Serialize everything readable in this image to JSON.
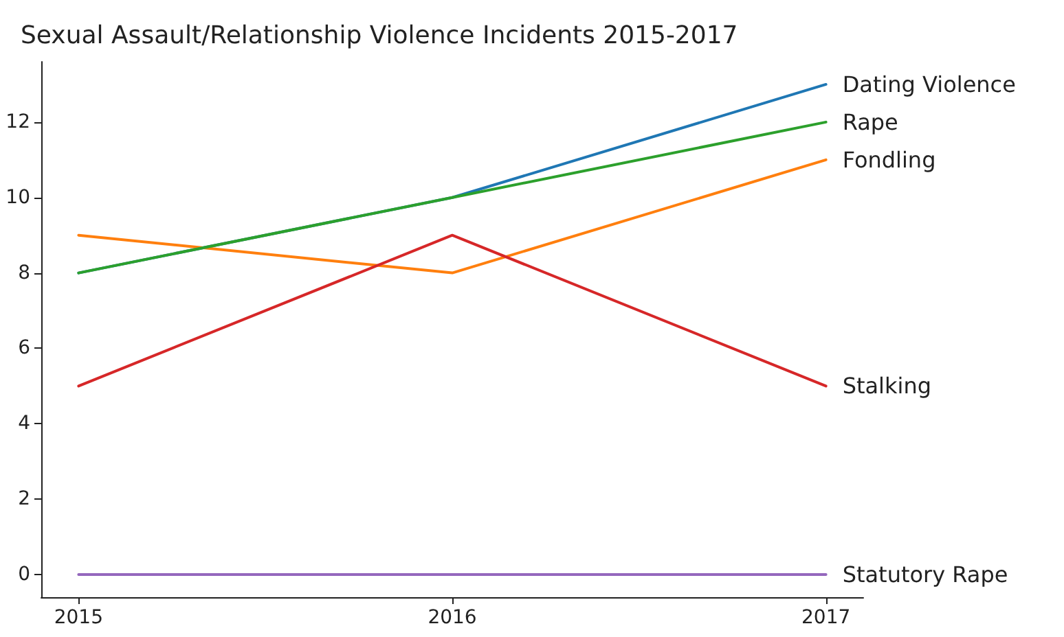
{
  "chart_data": {
    "type": "line",
    "title": "Sexual Assault/Relationship Violence Incidents 2015-2017",
    "x": [
      2015,
      2016,
      2017
    ],
    "series": [
      {
        "name": "Dating Violence",
        "color": "#1f77b4",
        "values": [
          8,
          10,
          13
        ]
      },
      {
        "name": "Fondling",
        "color": "#ff7f0e",
        "values": [
          9,
          8,
          11
        ]
      },
      {
        "name": "Rape",
        "color": "#2ca02c",
        "values": [
          8,
          10,
          12
        ]
      },
      {
        "name": "Stalking",
        "color": "#d62728",
        "values": [
          5,
          9,
          5
        ]
      },
      {
        "name": "Statutory Rape",
        "color": "#9467bd",
        "values": [
          0,
          0,
          0
        ]
      }
    ],
    "xlim": [
      2014.9,
      2017.1
    ],
    "xticks": [
      2015,
      2016,
      2017
    ],
    "ylim": [
      -0.6,
      13.6
    ],
    "yticks": [
      0,
      2,
      4,
      6,
      8,
      10,
      12
    ],
    "grid": false,
    "legend": false,
    "marker": "none",
    "line_style": "solid"
  }
}
